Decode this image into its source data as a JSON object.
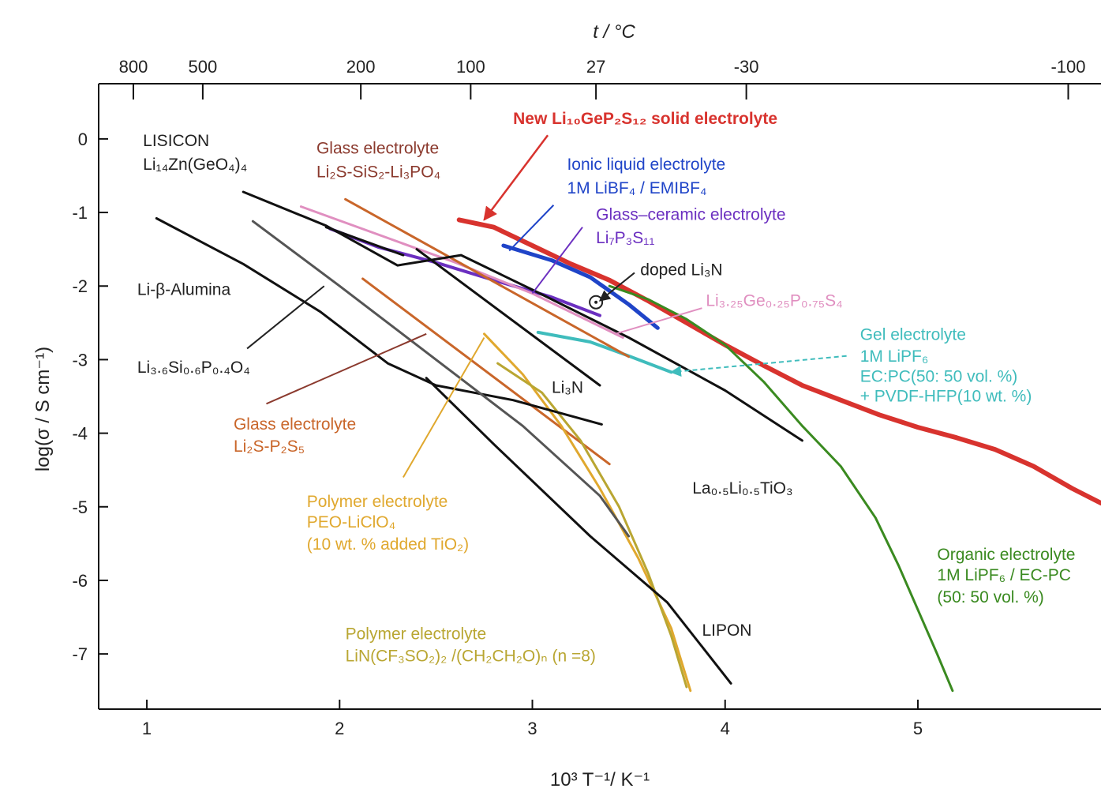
{
  "chart_data": {
    "type": "line",
    "title": "",
    "xlabel": "10³ T⁻¹/ K⁻¹",
    "ylabel": "log(σ / S cm⁻¹)",
    "top_axis_label": "t / °C",
    "xlim": [
      0.75,
      5.95
    ],
    "ylim": [
      -7.75,
      0.75
    ],
    "x_ticks": [
      1,
      2,
      3,
      4,
      5
    ],
    "x_tick_labels": [
      "1",
      "2",
      "3",
      "4",
      "5"
    ],
    "y_ticks": [
      0,
      -1,
      -2,
      -3,
      -4,
      -5,
      -6,
      -7
    ],
    "y_tick_labels": [
      "0",
      "-1",
      "-2",
      "-3",
      "-4",
      "-5",
      "-6",
      "-7"
    ],
    "top_ticks": [
      {
        "label": "800",
        "x": 0.93
      },
      {
        "label": "500",
        "x": 1.29
      },
      {
        "label": "200",
        "x": 2.11
      },
      {
        "label": "100",
        "x": 2.68
      },
      {
        "label": "27",
        "x": 3.33
      },
      {
        "label": "-30",
        "x": 4.11
      },
      {
        "label": "-100",
        "x": 5.78
      }
    ],
    "series": [
      {
        "color": "#d8332e",
        "width": 6,
        "points": [
          [
            2.62,
            -1.1
          ],
          [
            2.8,
            -1.2
          ],
          [
            3.0,
            -1.45
          ],
          [
            3.2,
            -1.7
          ],
          [
            3.4,
            -1.92
          ],
          [
            3.6,
            -2.2
          ],
          [
            3.8,
            -2.5
          ],
          [
            4.0,
            -2.8
          ],
          [
            4.2,
            -3.08
          ],
          [
            4.4,
            -3.35
          ],
          [
            4.6,
            -3.55
          ],
          [
            4.8,
            -3.75
          ],
          [
            5.0,
            -3.92
          ],
          [
            5.2,
            -4.06
          ],
          [
            5.4,
            -4.22
          ],
          [
            5.6,
            -4.45
          ],
          [
            5.8,
            -4.75
          ],
          [
            5.95,
            -4.95
          ]
        ]
      },
      {
        "color": "#3a8a20",
        "width": 3,
        "points": [
          [
            3.4,
            -2.0
          ],
          [
            3.6,
            -2.18
          ],
          [
            3.8,
            -2.45
          ],
          [
            4.0,
            -2.8
          ],
          [
            4.2,
            -3.3
          ],
          [
            4.4,
            -3.9
          ],
          [
            4.6,
            -4.45
          ],
          [
            4.78,
            -5.15
          ],
          [
            4.9,
            -5.8
          ],
          [
            5.0,
            -6.4
          ],
          [
            5.1,
            -7.0
          ],
          [
            5.18,
            -7.5
          ]
        ]
      },
      {
        "color": "#1f44c8",
        "width": 5,
        "points": [
          [
            2.85,
            -1.45
          ],
          [
            3.1,
            -1.65
          ],
          [
            3.3,
            -1.88
          ],
          [
            3.5,
            -2.25
          ],
          [
            3.65,
            -2.57
          ]
        ]
      },
      {
        "color": "#6b2fc0",
        "width": 4,
        "points": [
          [
            1.95,
            -1.22
          ],
          [
            2.2,
            -1.47
          ],
          [
            2.5,
            -1.68
          ],
          [
            2.8,
            -1.92
          ],
          [
            3.1,
            -2.15
          ],
          [
            3.35,
            -2.4
          ]
        ]
      },
      {
        "color": "#e08fc0",
        "width": 3,
        "points": [
          [
            1.8,
            -0.92
          ],
          [
            2.2,
            -1.3
          ],
          [
            2.6,
            -1.68
          ],
          [
            3.0,
            -2.1
          ],
          [
            3.47,
            -2.7
          ]
        ]
      },
      {
        "color": "#3fbcbc",
        "width": 4,
        "points": [
          [
            3.03,
            -2.63
          ],
          [
            3.3,
            -2.76
          ],
          [
            3.5,
            -2.95
          ],
          [
            3.72,
            -3.17
          ]
        ]
      },
      {
        "color": "#c9662a",
        "width": 3,
        "points": [
          [
            2.03,
            -0.82
          ],
          [
            3.5,
            -2.96
          ]
        ]
      },
      {
        "color": "#c9662a",
        "width": 3,
        "points": [
          [
            2.12,
            -1.9
          ],
          [
            3.4,
            -4.42
          ]
        ]
      },
      {
        "color": "#e0a82e",
        "width": 3,
        "points": [
          [
            2.75,
            -2.65
          ],
          [
            2.95,
            -3.2
          ],
          [
            3.15,
            -3.9
          ],
          [
            3.35,
            -4.75
          ],
          [
            3.55,
            -5.7
          ],
          [
            3.72,
            -6.65
          ],
          [
            3.82,
            -7.5
          ]
        ]
      },
      {
        "color": "#b9a632",
        "width": 3,
        "points": [
          [
            2.82,
            -3.05
          ],
          [
            3.05,
            -3.45
          ],
          [
            3.25,
            -4.1
          ],
          [
            3.45,
            -5.0
          ],
          [
            3.6,
            -5.9
          ],
          [
            3.72,
            -6.75
          ],
          [
            3.8,
            -7.45
          ]
        ]
      },
      {
        "color": "#111111",
        "width": 3,
        "points": [
          [
            1.5,
            -0.72
          ],
          [
            1.93,
            -1.18
          ],
          [
            2.3,
            -1.72
          ],
          [
            2.63,
            -1.58
          ],
          [
            3.0,
            -2.05
          ],
          [
            3.5,
            -2.7
          ],
          [
            4.0,
            -3.42
          ],
          [
            4.4,
            -4.1
          ]
        ]
      },
      {
        "color": "#111111",
        "width": 3,
        "points": [
          [
            1.93,
            -1.2
          ],
          [
            2.33,
            -1.58
          ]
        ]
      },
      {
        "color": "#111111",
        "width": 3,
        "points": [
          [
            2.4,
            -1.5
          ],
          [
            3.35,
            -3.35
          ]
        ]
      },
      {
        "color": "#111111",
        "width": 3,
        "points": [
          [
            1.05,
            -1.08
          ],
          [
            1.5,
            -1.7
          ],
          [
            1.9,
            -2.35
          ],
          [
            2.25,
            -3.05
          ],
          [
            2.5,
            -3.35
          ],
          [
            2.9,
            -3.55
          ],
          [
            3.36,
            -3.88
          ]
        ]
      },
      {
        "color": "#555555",
        "width": 3,
        "points": [
          [
            1.55,
            -1.12
          ],
          [
            2.0,
            -2.0
          ],
          [
            2.5,
            -3.0
          ],
          [
            2.95,
            -3.9
          ],
          [
            3.35,
            -4.85
          ],
          [
            3.5,
            -5.4
          ]
        ]
      },
      {
        "color": "#111111",
        "width": 3,
        "points": [
          [
            2.45,
            -3.25
          ],
          [
            2.8,
            -4.15
          ],
          [
            3.3,
            -5.4
          ],
          [
            3.7,
            -6.3
          ],
          [
            4.03,
            -7.4
          ]
        ]
      }
    ],
    "annotations": [
      {
        "text": "New Li₁₀GeP₂S₁₂ solid electrolyte",
        "color": "#d8332e",
        "x": 2.9,
        "y": 0.2,
        "size": 28,
        "bold": true
      },
      {
        "text": "LISICON",
        "color": "#222222",
        "x": 0.98,
        "y": -0.1
      },
      {
        "text": "Li₁₄Zn(GeO₄)₄",
        "color": "#222222",
        "x": 0.98,
        "y": -0.42
      },
      {
        "text": "Glass electrolyte",
        "color": "#8b3a2e",
        "x": 1.88,
        "y": -0.2
      },
      {
        "text": "Li₂S-SiS₂-Li₃PO₄",
        "color": "#8b3a2e",
        "x": 1.88,
        "y": -0.52
      },
      {
        "text": "Ionic liquid electrolyte",
        "color": "#1f44c8",
        "x": 3.18,
        "y": -0.42
      },
      {
        "text": "1M LiBF₄ / EMIBF₄",
        "color": "#1f44c8",
        "x": 3.18,
        "y": -0.74
      },
      {
        "text": "Glass–ceramic electrolyte",
        "color": "#6b2fc0",
        "x": 3.33,
        "y": -1.1
      },
      {
        "text": "Li₇P₃S₁₁",
        "color": "#6b2fc0",
        "x": 3.33,
        "y": -1.42
      },
      {
        "text": "doped Li₃N",
        "color": "#222222",
        "x": 3.56,
        "y": -1.85
      },
      {
        "text": "Li₃.₂₅Ge₀.₂₅P₀.₇₅S₄",
        "color": "#e08fc0",
        "x": 3.9,
        "y": -2.27
      },
      {
        "text": "Li-β-Alumina",
        "color": "#222222",
        "x": 0.95,
        "y": -2.12
      },
      {
        "text": "Gel electrolyte",
        "color": "#3fbcbc",
        "x": 4.7,
        "y": -2.73
      },
      {
        "text": "1M LiPF₆",
        "color": "#3fbcbc",
        "x": 4.7,
        "y": -3.03
      },
      {
        "text": "EC:PC(50: 50 vol. %)",
        "color": "#3fbcbc",
        "x": 4.7,
        "y": -3.3
      },
      {
        "text": "+ PVDF-HFP(10 wt. %)",
        "color": "#3fbcbc",
        "x": 4.7,
        "y": -3.57
      },
      {
        "text": "Li₃.₆Si₀.₆P₀.₄O₄",
        "color": "#222222",
        "x": 0.95,
        "y": -3.18
      },
      {
        "text": "Li₃N",
        "color": "#222222",
        "x": 3.1,
        "y": -3.45
      },
      {
        "text": "Glass electrolyte",
        "color": "#c9662a",
        "x": 1.45,
        "y": -3.95
      },
      {
        "text": "Li₂S-P₂S₅",
        "color": "#c9662a",
        "x": 1.45,
        "y": -4.25
      },
      {
        "text": "La₀.₅Li₀.₅TiO₃",
        "color": "#222222",
        "x": 3.83,
        "y": -4.82
      },
      {
        "text": "Polymer electrolyte",
        "color": "#e0a82e",
        "x": 1.83,
        "y": -5.0
      },
      {
        "text": "PEO-LiClO₄",
        "color": "#e0a82e",
        "x": 1.83,
        "y": -5.28
      },
      {
        "text": "(10 wt. % added TiO₂)",
        "color": "#e0a82e",
        "x": 1.83,
        "y": -5.58
      },
      {
        "text": "Organic electrolyte",
        "color": "#3a8a20",
        "x": 5.1,
        "y": -5.72
      },
      {
        "text": "1M LiPF₆ / EC-PC",
        "color": "#3a8a20",
        "x": 5.1,
        "y": -6.0
      },
      {
        "text": "(50: 50 vol. %)",
        "color": "#3a8a20",
        "x": 5.1,
        "y": -6.3
      },
      {
        "text": "LIPON",
        "color": "#222222",
        "x": 3.88,
        "y": -6.75
      },
      {
        "text": "Polymer electrolyte",
        "color": "#b9a632",
        "x": 2.03,
        "y": -6.8
      },
      {
        "text": "LiN(CF₃SO₂)₂ /(CH₂CH₂O)ₙ (n =8)",
        "color": "#b9a632",
        "x": 2.03,
        "y": -7.1
      }
    ],
    "pointer_lines": [
      {
        "color": "#d8332e",
        "width": 2.5,
        "arrow": true,
        "from": [
          3.08,
          0.05
        ],
        "to": [
          2.75,
          -1.1
        ]
      },
      {
        "color": "#1f44c8",
        "width": 2,
        "from": [
          3.11,
          -0.9
        ],
        "to": [
          2.88,
          -1.52
        ]
      },
      {
        "color": "#6b2fc0",
        "width": 2,
        "from": [
          3.26,
          -1.2
        ],
        "to": [
          3.0,
          -2.1
        ]
      },
      {
        "color": "#222222",
        "width": 2,
        "arrow": true,
        "from": [
          3.53,
          -1.82
        ],
        "to": [
          3.35,
          -2.2
        ]
      },
      {
        "color": "#e08fc0",
        "width": 2,
        "from": [
          3.88,
          -2.3
        ],
        "to": [
          3.43,
          -2.65
        ]
      },
      {
        "color": "#3fbcbc",
        "width": 2,
        "dashed": true,
        "arrow": true,
        "from": [
          4.63,
          -2.95
        ],
        "to": [
          3.72,
          -3.17
        ]
      },
      {
        "color": "#222222",
        "width": 2,
        "from": [
          1.52,
          -2.85
        ],
        "to": [
          1.92,
          -2.0
        ]
      },
      {
        "color": "#8b3a2e",
        "width": 2,
        "from": [
          1.62,
          -3.6
        ],
        "to": [
          2.45,
          -2.65
        ]
      },
      {
        "color": "#e0a82e",
        "width": 2,
        "from": [
          2.33,
          -4.6
        ],
        "to": [
          2.75,
          -2.7
        ]
      }
    ],
    "markers": [
      {
        "x": 3.33,
        "y": -2.22,
        "shape": "circle-dot",
        "color": "#222222"
      }
    ]
  }
}
